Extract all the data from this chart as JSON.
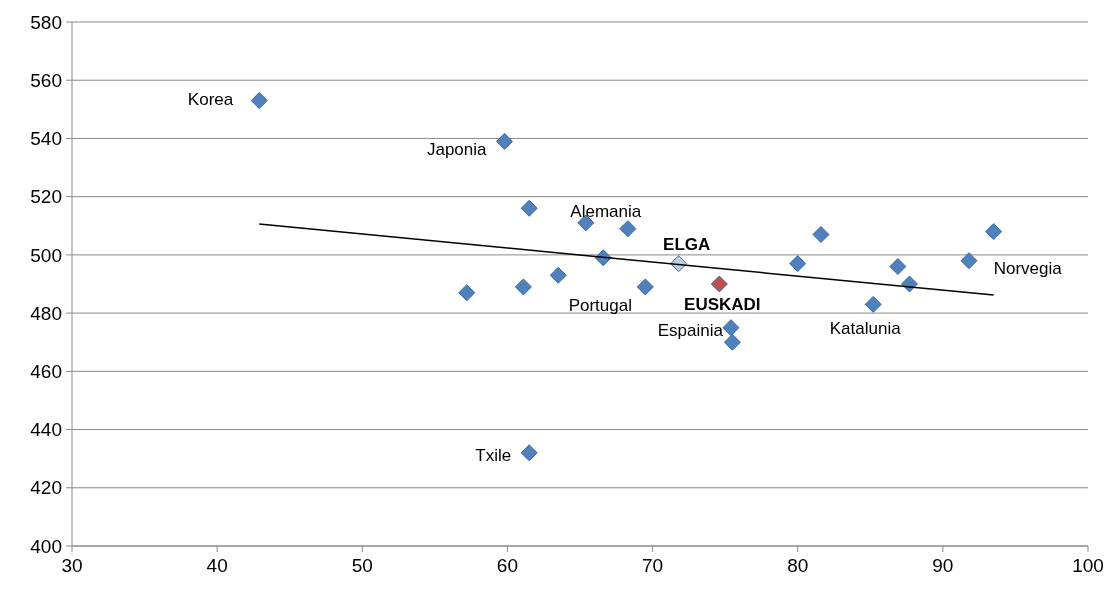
{
  "chart_data": {
    "type": "scatter",
    "xlim": [
      30,
      100
    ],
    "xticks": [
      30,
      40,
      50,
      60,
      70,
      80,
      90,
      100
    ],
    "ylim": [
      400,
      580
    ],
    "yticks": [
      400,
      420,
      440,
      460,
      480,
      500,
      520,
      540,
      560,
      580
    ],
    "grid": "y",
    "legend": false,
    "series": [
      {
        "color": "#4f81bd",
        "marker": "diamond",
        "x": [
          42.9,
          59.8,
          61.5,
          65.4,
          68.3,
          66.6,
          63.5,
          61.1,
          57.2,
          69.5,
          75.4,
          75.5,
          80.0,
          81.6,
          85.2,
          86.9,
          87.7,
          91.8,
          93.5,
          61.5
        ],
        "values": [
          553,
          539,
          516,
          511,
          509,
          499,
          493,
          489,
          487,
          489,
          475,
          470,
          497,
          507,
          483,
          496,
          490,
          498,
          508,
          432
        ]
      },
      {
        "name": "ELGA",
        "color": "#b9cde5",
        "marker": "diamond",
        "x": [
          71.8
        ],
        "values": [
          497
        ]
      },
      {
        "name": "EUSKADI",
        "color": "#c0504d",
        "marker": "diamond",
        "x": [
          74.6
        ],
        "values": [
          490
        ]
      },
      {
        "type": "line",
        "color": "#000000",
        "marker": "none",
        "x": [
          42.9,
          93.5
        ],
        "values": [
          510.6,
          486.2
        ]
      }
    ],
    "annotations": [
      {
        "text": "Korea",
        "x": 42.9,
        "y": 553
      },
      {
        "text": "Japonia",
        "x": 59.8,
        "y": 539
      },
      {
        "text": "Alemania",
        "x": 65.4,
        "y": 511
      },
      {
        "text": "Portugal",
        "x": 69.5,
        "y": 489
      },
      {
        "text": "Espainia",
        "x": 75.4,
        "y": 475
      },
      {
        "text": "Katalunia",
        "x": 85.2,
        "y": 483
      },
      {
        "text": "Norvegia",
        "x": 93.5,
        "y": 508
      },
      {
        "text": "Txile",
        "x": 61.5,
        "y": 432
      }
    ]
  }
}
